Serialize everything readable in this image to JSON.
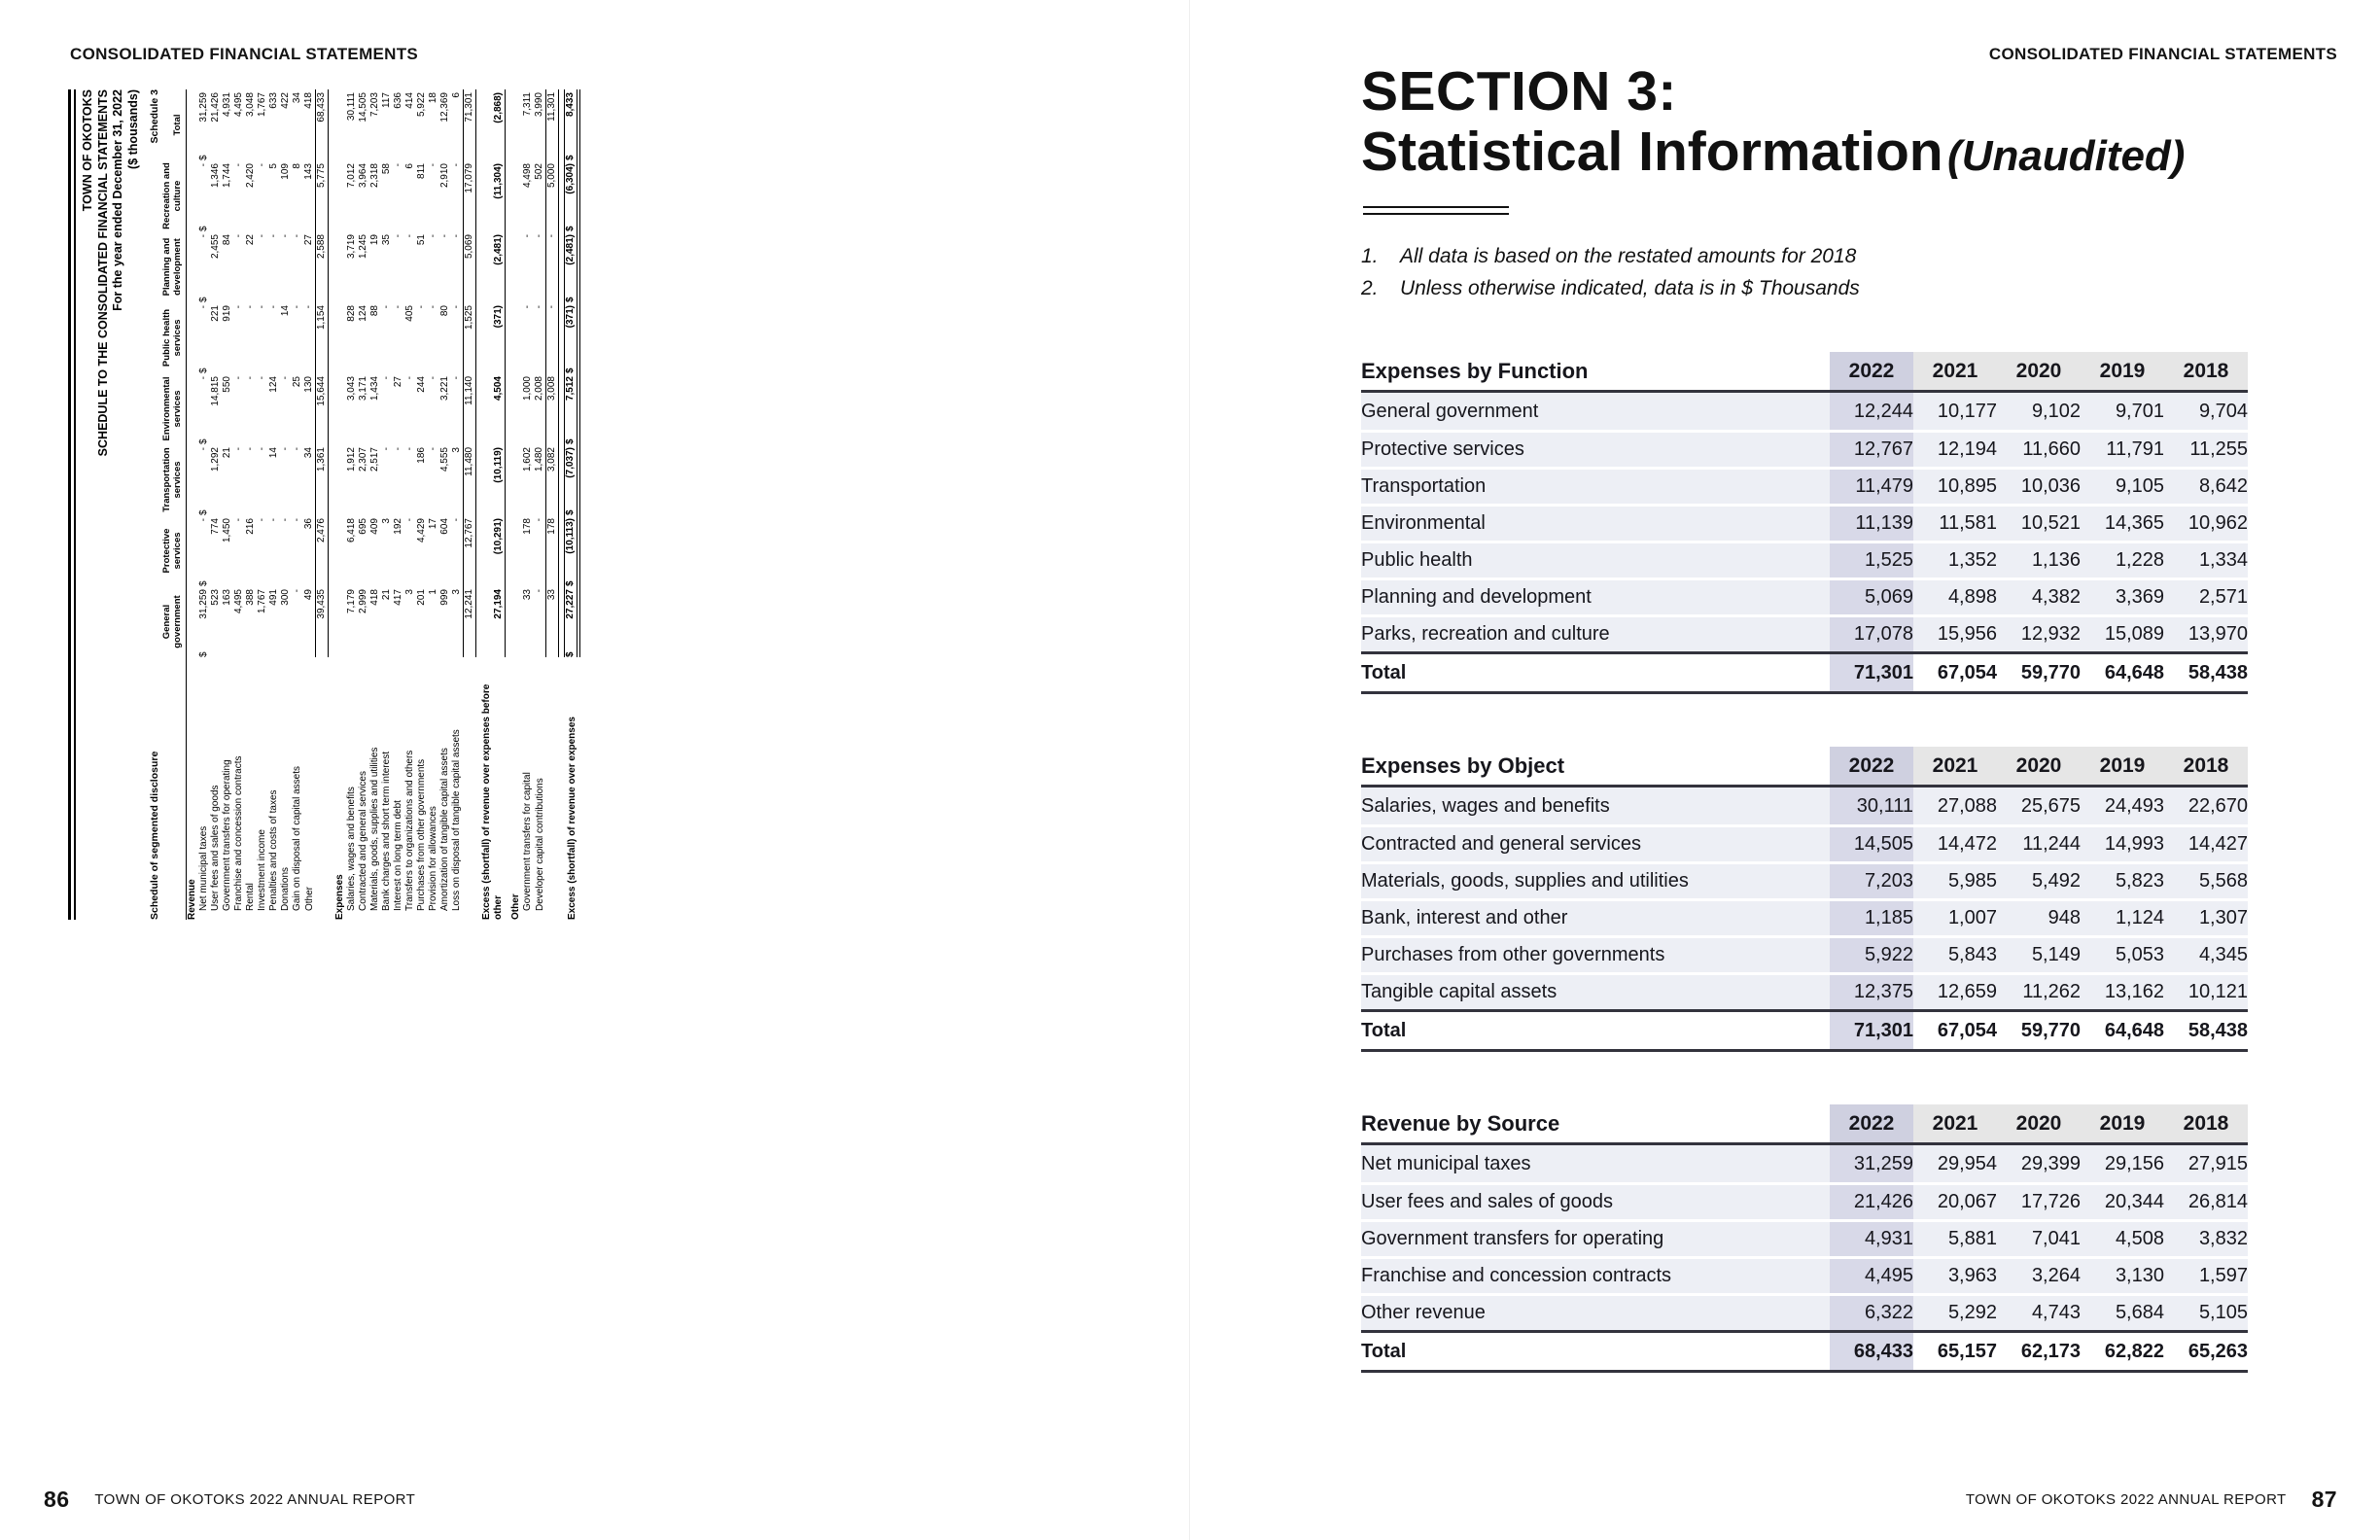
{
  "left_page": {
    "running_head": "CONSOLIDATED FINANCIAL STATEMENTS",
    "footer": {
      "page_number": "86",
      "text": "TOWN OF OKOTOKS 2022 ANNUAL REPORT"
    },
    "schedule": {
      "schedule_label": "Schedule 3",
      "title_lines": [
        "TOWN OF OKOTOKS",
        "SCHEDULE TO THE CONSOLIDATED FINANCIAL STATEMENTS",
        "For the year ended December 31, 2022",
        "($ thousands)"
      ],
      "row_header": "Schedule of segmented disclosure",
      "columns": [
        "General government",
        "Protective services",
        "Transportation services",
        "Environmental services",
        "Public health services",
        "Planning and development",
        "Recreation and culture",
        "Total"
      ],
      "rows": [
        {
          "type": "section",
          "label": "Revenue"
        },
        {
          "type": "item",
          "label": "Net municipal taxes",
          "cells": [
            "$ 31,259",
            "$ -",
            "$ -",
            "$ -",
            "$ -",
            "$ -",
            "$ -",
            "$ 31,259"
          ]
        },
        {
          "type": "item",
          "label": "User fees and sales of goods",
          "cells": [
            "523",
            "774",
            "1,292",
            "14,815",
            "221",
            "2,455",
            "1,346",
            "21,426"
          ]
        },
        {
          "type": "item",
          "label": "Government transfers for operating",
          "cells": [
            "163",
            "1,450",
            "21",
            "550",
            "919",
            "84",
            "1,744",
            "4,931"
          ]
        },
        {
          "type": "item",
          "label": "Franchise and concession contracts",
          "cells": [
            "4,495",
            "-",
            "-",
            "-",
            "-",
            "-",
            "-",
            "4,495"
          ]
        },
        {
          "type": "item",
          "label": "Rental",
          "cells": [
            "388",
            "216",
            "-",
            "-",
            "-",
            "22",
            "2,420",
            "3,048"
          ]
        },
        {
          "type": "item",
          "label": "Investment income",
          "cells": [
            "1,767",
            "-",
            "-",
            "-",
            "-",
            "-",
            "-",
            "1,767"
          ]
        },
        {
          "type": "item",
          "label": "Penalties and costs of taxes",
          "cells": [
            "491",
            "-",
            "14",
            "124",
            "-",
            "-",
            "5",
            "633"
          ]
        },
        {
          "type": "item",
          "label": "Donations",
          "cells": [
            "300",
            "-",
            "-",
            "-",
            "14",
            "-",
            "109",
            "422"
          ]
        },
        {
          "type": "item",
          "label": "Gain on disposal of capital assets",
          "cells": [
            "-",
            "-",
            "-",
            "25",
            "-",
            "-",
            "8",
            "34"
          ]
        },
        {
          "type": "item",
          "label": "Other",
          "cells": [
            "49",
            "36",
            "34",
            "130",
            "-",
            "27",
            "143",
            "418"
          ]
        },
        {
          "type": "total",
          "label": "",
          "cells": [
            "39,435",
            "2,476",
            "1,361",
            "15,644",
            "1,154",
            "2,588",
            "5,775",
            "68,433"
          ]
        },
        {
          "type": "spacer"
        },
        {
          "type": "section",
          "label": "Expenses"
        },
        {
          "type": "item",
          "label": "Salaries, wages and benefits",
          "cells": [
            "7,179",
            "6,418",
            "1,912",
            "3,043",
            "828",
            "3,719",
            "7,012",
            "30,111"
          ]
        },
        {
          "type": "item",
          "label": "Contracted and general services",
          "cells": [
            "2,999",
            "695",
            "2,307",
            "3,171",
            "124",
            "1,245",
            "3,964",
            "14,505"
          ]
        },
        {
          "type": "item",
          "label": "Materials, goods, supplies and utilities",
          "cells": [
            "418",
            "409",
            "2,517",
            "1,434",
            "88",
            "19",
            "2,318",
            "7,203"
          ]
        },
        {
          "type": "item",
          "label": "Bank charges and short term interest",
          "cells": [
            "21",
            "3",
            "-",
            "-",
            "-",
            "35",
            "58",
            "117"
          ]
        },
        {
          "type": "item",
          "label": "Interest on long term debt",
          "cells": [
            "417",
            "192",
            "-",
            "27",
            "-",
            "-",
            "-",
            "636"
          ]
        },
        {
          "type": "item",
          "label": "Transfers to organizations and others",
          "cells": [
            "3",
            "-",
            "-",
            "-",
            "405",
            "-",
            "6",
            "414"
          ]
        },
        {
          "type": "item",
          "label": "Purchases from other governments",
          "cells": [
            "201",
            "4,429",
            "186",
            "244",
            "-",
            "51",
            "811",
            "5,922"
          ]
        },
        {
          "type": "item",
          "label": "Provision for allowances",
          "cells": [
            "1",
            "17",
            "-",
            "-",
            "-",
            "-",
            "-",
            "18"
          ]
        },
        {
          "type": "item",
          "label": "Amortization of tangible capital assets",
          "cells": [
            "999",
            "604",
            "4,555",
            "3,221",
            "80",
            "-",
            "2,910",
            "12,369"
          ]
        },
        {
          "type": "item",
          "label": "Loss on disposal of tangible capital assets",
          "cells": [
            "3",
            "-",
            "3",
            "-",
            "-",
            "-",
            "-",
            "6"
          ]
        },
        {
          "type": "total",
          "label": "",
          "cells": [
            "12,241",
            "12,767",
            "11,480",
            "11,140",
            "1,525",
            "5,069",
            "17,079",
            "71,301"
          ]
        },
        {
          "type": "spacer"
        },
        {
          "type": "excess",
          "label": "Excess (shortfall) of revenue over expenses before other",
          "cells": [
            "27,194",
            "(10,291)",
            "(10,119)",
            "4,504",
            "(371)",
            "(2,481)",
            "(11,304)",
            "(2,868)"
          ]
        },
        {
          "type": "spacer"
        },
        {
          "type": "section",
          "label": "Other"
        },
        {
          "type": "item",
          "label": "Government transfers for capital",
          "cells": [
            "33",
            "178",
            "1,602",
            "1,000",
            "-",
            "-",
            "4,498",
            "7,311"
          ]
        },
        {
          "type": "item",
          "label": "Developer capital contributions",
          "cells": [
            "-",
            "-",
            "1,480",
            "2,008",
            "-",
            "-",
            "502",
            "3,990"
          ]
        },
        {
          "type": "total",
          "label": "",
          "cells": [
            "33",
            "178",
            "3,082",
            "3,008",
            "-",
            "-",
            "5,000",
            "11,301"
          ]
        },
        {
          "type": "spacer"
        },
        {
          "type": "final",
          "label": "Excess (shortfall) of revenue over expenses",
          "cells": [
            "$ 27,227",
            "$ (10,113)",
            "$ (7,037)",
            "$ 7,512",
            "$ (371)",
            "$ (2,481)",
            "$ (6,304)",
            "$ 8,433"
          ]
        }
      ]
    }
  },
  "right_page": {
    "running_head": "CONSOLIDATED FINANCIAL STATEMENTS",
    "title": {
      "line1": "SECTION 3:",
      "line2": "Statistical Information",
      "suffix": "(Unaudited)"
    },
    "notes": [
      {
        "num": "1.",
        "text": "All data is based on the restated amounts for 2018"
      },
      {
        "num": "2.",
        "text": "Unless otherwise indicated, data is in $ Thousands"
      }
    ],
    "tables": [
      {
        "title": "Expenses by Function",
        "years": [
          "2022",
          "2021",
          "2020",
          "2019",
          "2018"
        ],
        "rows": [
          {
            "label": "General government",
            "values": [
              "12,244",
              "10,177",
              "9,102",
              "9,701",
              "9,704"
            ]
          },
          {
            "label": "Protective services",
            "values": [
              "12,767",
              "12,194",
              "11,660",
              "11,791",
              "11,255"
            ]
          },
          {
            "label": "Transportation",
            "values": [
              "11,479",
              "10,895",
              "10,036",
              "9,105",
              "8,642"
            ]
          },
          {
            "label": "Environmental",
            "values": [
              "11,139",
              "11,581",
              "10,521",
              "14,365",
              "10,962"
            ]
          },
          {
            "label": "Public health",
            "values": [
              "1,525",
              "1,352",
              "1,136",
              "1,228",
              "1,334"
            ]
          },
          {
            "label": "Planning and development",
            "values": [
              "5,069",
              "4,898",
              "4,382",
              "3,369",
              "2,571"
            ]
          },
          {
            "label": "Parks, recreation and culture",
            "values": [
              "17,078",
              "15,956",
              "12,932",
              "15,089",
              "13,970"
            ]
          }
        ],
        "total": {
          "label": "Total",
          "values": [
            "71,301",
            "67,054",
            "59,770",
            "64,648",
            "58,438"
          ]
        }
      },
      {
        "title": "Expenses by Object",
        "years": [
          "2022",
          "2021",
          "2020",
          "2019",
          "2018"
        ],
        "rows": [
          {
            "label": "Salaries, wages and benefits",
            "values": [
              "30,111",
              "27,088",
              "25,675",
              "24,493",
              "22,670"
            ]
          },
          {
            "label": "Contracted and general services",
            "values": [
              "14,505",
              "14,472",
              "11,244",
              "14,993",
              "14,427"
            ]
          },
          {
            "label": "Materials, goods, supplies and utilities",
            "values": [
              "7,203",
              "5,985",
              "5,492",
              "5,823",
              "5,568"
            ]
          },
          {
            "label": "Bank, interest and other",
            "values": [
              "1,185",
              "1,007",
              "948",
              "1,124",
              "1,307"
            ]
          },
          {
            "label": "Purchases from other governments",
            "values": [
              "5,922",
              "5,843",
              "5,149",
              "5,053",
              "4,345"
            ]
          },
          {
            "label": "Tangible capital assets",
            "values": [
              "12,375",
              "12,659",
              "11,262",
              "13,162",
              "10,121"
            ]
          }
        ],
        "total": {
          "label": "Total",
          "values": [
            "71,301",
            "67,054",
            "59,770",
            "64,648",
            "58,438"
          ]
        }
      },
      {
        "title": "Revenue by Source",
        "years": [
          "2022",
          "2021",
          "2020",
          "2019",
          "2018"
        ],
        "rows": [
          {
            "label": "Net municipal taxes",
            "values": [
              "31,259",
              "29,954",
              "29,399",
              "29,156",
              "27,915"
            ]
          },
          {
            "label": "User fees and sales of goods",
            "values": [
              "21,426",
              "20,067",
              "17,726",
              "20,344",
              "26,814"
            ]
          },
          {
            "label": "Government transfers for operating",
            "values": [
              "4,931",
              "5,881",
              "7,041",
              "4,508",
              "3,832"
            ]
          },
          {
            "label": "Franchise and concession contracts",
            "values": [
              "4,495",
              "3,963",
              "3,264",
              "3,130",
              "1,597"
            ]
          },
          {
            "label": "Other revenue",
            "values": [
              "6,322",
              "5,292",
              "4,743",
              "5,684",
              "5,105"
            ]
          }
        ],
        "total": {
          "label": "Total",
          "values": [
            "68,433",
            "65,157",
            "62,173",
            "62,822",
            "65,263"
          ]
        }
      }
    ],
    "footer": {
      "text": "TOWN OF OKOTOKS 2022 ANNUAL REPORT",
      "page_number": "87"
    }
  },
  "colors": {
    "accent_lavender": "#d8d9e8",
    "header_gray": "#e6e6e6",
    "row_tint": "#edeff5",
    "rule_dark": "#33333d"
  }
}
